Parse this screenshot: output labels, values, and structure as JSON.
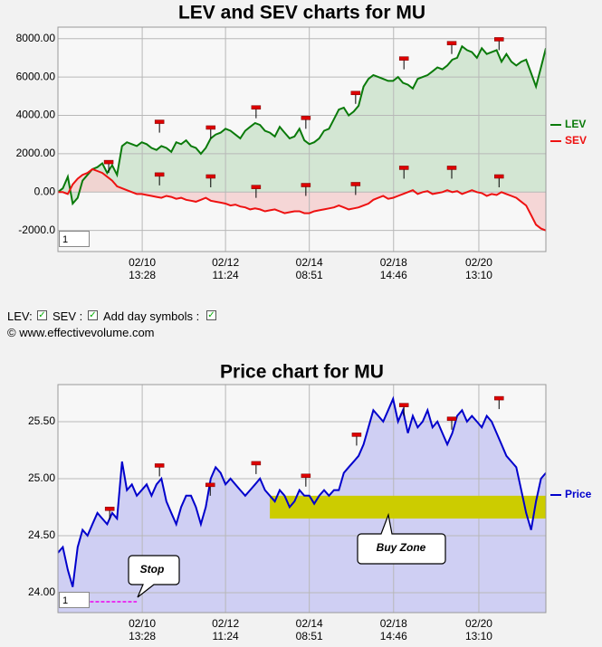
{
  "chart_data": [
    {
      "type": "line",
      "title": "LEV and SEV charts for MU",
      "scale_box": "1",
      "x": [
        0,
        1,
        2,
        3,
        4,
        5,
        6,
        7,
        8,
        9,
        10,
        11,
        12,
        13,
        14,
        15,
        16,
        17,
        18,
        19,
        20,
        21,
        22,
        23,
        24,
        25,
        26,
        27,
        28,
        29,
        30,
        31,
        32,
        33,
        34,
        35,
        36,
        37,
        38,
        39,
        40,
        41,
        42,
        43,
        44,
        45,
        46,
        47,
        48,
        49,
        50,
        51,
        52,
        53,
        54,
        55,
        56,
        57,
        58,
        59,
        60,
        61,
        62,
        63,
        64,
        65,
        66,
        67,
        68,
        69,
        70,
        71,
        72,
        73,
        74,
        75,
        76,
        77,
        78,
        79,
        80,
        81,
        82,
        83,
        84,
        85,
        86,
        87,
        88,
        89,
        90,
        91,
        92,
        93,
        94,
        95,
        96,
        97,
        98,
        99
      ],
      "xlim": [
        0,
        99
      ],
      "xticks": [
        {
          "value": 17.1,
          "label": "02/10 13:28"
        },
        {
          "value": 34,
          "label": "02/12 11:24"
        },
        {
          "value": 51,
          "label": "02/14 08:51"
        },
        {
          "value": 68.1,
          "label": "02/18 14:46"
        },
        {
          "value": 85.4,
          "label": "02/20 13:10"
        }
      ],
      "ylim": [
        -3100,
        8600
      ],
      "yticks": [
        {
          "value": 8000,
          "label": "8000.00"
        },
        {
          "value": 6000,
          "label": "6000.00"
        },
        {
          "value": 4000,
          "label": "4000.00"
        },
        {
          "value": 2000,
          "label": "2000.00"
        },
        {
          "value": 0,
          "label": "0.00"
        },
        {
          "value": -2000,
          "label": "-2000.0"
        }
      ],
      "grid": true,
      "series": [
        {
          "name": "LEV",
          "color": "#0a7a0a",
          "fill": "#cde3cd",
          "values": [
            0,
            200,
            800,
            -600,
            -300,
            600,
            900,
            1200,
            1300,
            1500,
            1000,
            1400,
            900,
            2400,
            2600,
            2500,
            2400,
            2600,
            2500,
            2300,
            2200,
            2400,
            2300,
            2100,
            2600,
            2500,
            2700,
            2400,
            2300,
            2000,
            2300,
            2800,
            3000,
            3100,
            3300,
            3200,
            3000,
            2800,
            3200,
            3400,
            3600,
            3500,
            3200,
            3100,
            2900,
            3400,
            3100,
            2800,
            2900,
            3300,
            2700,
            2500,
            2600,
            2800,
            3200,
            3300,
            3800,
            4300,
            4400,
            4000,
            4200,
            4500,
            5500,
            5900,
            6100,
            6000,
            5900,
            5800,
            5800,
            6000,
            5700,
            5600,
            5400,
            5900,
            6000,
            6100,
            6300,
            6500,
            6400,
            6600,
            6900,
            7000,
            7600,
            7400,
            7300,
            7000,
            7500,
            7200,
            7300,
            7400,
            6800,
            7200,
            6800,
            6600,
            6800,
            6900,
            6200,
            5500,
            6500,
            7500
          ],
          "markers": {
            "x": [
              10.3,
              20.6,
              31,
              40.2,
              50.3,
              60.4,
              70.2,
              79.9,
              89.5
            ],
            "values": [
              1000,
              3100,
              2800,
              3850,
              3300,
              4600,
              6400,
              7200,
              7400
            ]
          }
        },
        {
          "name": "SEV",
          "color": "#ee1111",
          "fill": "#f5d0d0",
          "values": [
            0,
            0,
            -100,
            400,
            700,
            900,
            1000,
            1200,
            1100,
            1000,
            800,
            600,
            300,
            200,
            100,
            0,
            -100,
            -100,
            -150,
            -200,
            -250,
            -300,
            -200,
            -250,
            -350,
            -300,
            -400,
            -450,
            -500,
            -400,
            -300,
            -450,
            -500,
            -550,
            -600,
            -700,
            -650,
            -750,
            -800,
            -900,
            -850,
            -900,
            -1000,
            -950,
            -900,
            -1000,
            -1100,
            -1050,
            -1000,
            -1000,
            -1100,
            -1100,
            -1000,
            -950,
            -900,
            -850,
            -800,
            -700,
            -800,
            -900,
            -850,
            -800,
            -700,
            -600,
            -400,
            -300,
            -200,
            -350,
            -300,
            -200,
            -100,
            0,
            100,
            -100,
            0,
            50,
            -100,
            -50,
            0,
            100,
            0,
            50,
            -100,
            0,
            100,
            0,
            -50,
            -200,
            -100,
            -150,
            0,
            -100,
            -200,
            -300,
            -500,
            -700,
            -1200,
            -1700,
            -1900,
            -2000
          ],
          "markers": {
            "x": [
              20.6,
              31,
              40.2,
              50.3,
              60.4,
              70.2,
              79.9,
              89.5
            ],
            "values": [
              350,
              250,
              -300,
              -200,
              -150,
              700,
              700,
              250
            ]
          }
        }
      ]
    },
    {
      "type": "line",
      "title": "Price chart for MU",
      "scale_box": "1",
      "x": [
        0,
        1,
        2,
        3,
        4,
        5,
        6,
        7,
        8,
        9,
        10,
        11,
        12,
        13,
        14,
        15,
        16,
        17,
        18,
        19,
        20,
        21,
        22,
        23,
        24,
        25,
        26,
        27,
        28,
        29,
        30,
        31,
        32,
        33,
        34,
        35,
        36,
        37,
        38,
        39,
        40,
        41,
        42,
        43,
        44,
        45,
        46,
        47,
        48,
        49,
        50,
        51,
        52,
        53,
        54,
        55,
        56,
        57,
        58,
        59,
        60,
        61,
        62,
        63,
        64,
        65,
        66,
        67,
        68,
        69,
        70,
        71,
        72,
        73,
        74,
        75,
        76,
        77,
        78,
        79,
        80,
        81,
        82,
        83,
        84,
        85,
        86,
        87,
        88,
        89,
        90,
        91,
        92,
        93,
        94,
        95,
        96,
        97,
        98,
        99
      ],
      "xlim": [
        0,
        99
      ],
      "xticks": [
        {
          "value": 17.1,
          "label": "02/10 13:28"
        },
        {
          "value": 34,
          "label": "02/12 11:24"
        },
        {
          "value": 51,
          "label": "02/14 08:51"
        },
        {
          "value": 68.1,
          "label": "02/18 14:46"
        },
        {
          "value": 85.4,
          "label": "02/20 13:10"
        }
      ],
      "ylim": [
        23.825,
        25.825
      ],
      "yticks": [
        {
          "value": 25.5,
          "label": "25.50"
        },
        {
          "value": 25,
          "label": "25.00"
        },
        {
          "value": 24.5,
          "label": "24.50"
        },
        {
          "value": 24,
          "label": "24.00"
        }
      ],
      "grid": true,
      "series": [
        {
          "name": "Price",
          "color": "#0000cc",
          "fill": "#c8c8f2",
          "values": [
            24.35,
            24.4,
            24.2,
            24.05,
            24.4,
            24.55,
            24.5,
            24.6,
            24.7,
            24.65,
            24.6,
            24.7,
            24.65,
            25.15,
            24.9,
            24.95,
            24.85,
            24.9,
            24.95,
            24.85,
            24.95,
            25.0,
            24.8,
            24.7,
            24.6,
            24.75,
            24.85,
            24.85,
            24.75,
            24.6,
            24.75,
            25.0,
            25.1,
            25.05,
            24.95,
            25.0,
            24.95,
            24.9,
            24.85,
            24.9,
            24.95,
            25.0,
            24.9,
            24.85,
            24.8,
            24.9,
            24.85,
            24.75,
            24.8,
            24.9,
            24.85,
            24.85,
            24.78,
            24.85,
            24.9,
            24.85,
            24.9,
            24.9,
            25.05,
            25.1,
            25.15,
            25.2,
            25.3,
            25.45,
            25.6,
            25.55,
            25.5,
            25.6,
            25.7,
            25.5,
            25.6,
            25.4,
            25.55,
            25.45,
            25.5,
            25.6,
            25.45,
            25.5,
            25.4,
            25.3,
            25.4,
            25.55,
            25.6,
            25.5,
            25.55,
            25.5,
            25.45,
            25.55,
            25.5,
            25.4,
            25.3,
            25.2,
            25.15,
            25.1,
            24.9,
            24.7,
            24.55,
            24.8,
            25.0,
            25.05
          ],
          "markers": {
            "x": [
              10.5,
              20.6,
              30.9,
              40.2,
              50.3,
              60.6,
              70.2,
              79.9,
              89.5
            ],
            "values": [
              24.64,
              25.02,
              24.85,
              25.04,
              24.93,
              25.29,
              25.55,
              25.43,
              25.61
            ]
          }
        }
      ],
      "buy_zone": {
        "label": "Buy Zone",
        "ylim": [
          24.65,
          24.85
        ],
        "x": [
          43,
          99
        ]
      },
      "stop": {
        "label": "Stop",
        "value": 23.92,
        "x": [
          1,
          16
        ]
      }
    }
  ],
  "controls": {
    "lev": "LEV:",
    "sev": "SEV :",
    "day_symbols": "Add day symbols :",
    "copyright": "© www.effectivevolume.com"
  }
}
